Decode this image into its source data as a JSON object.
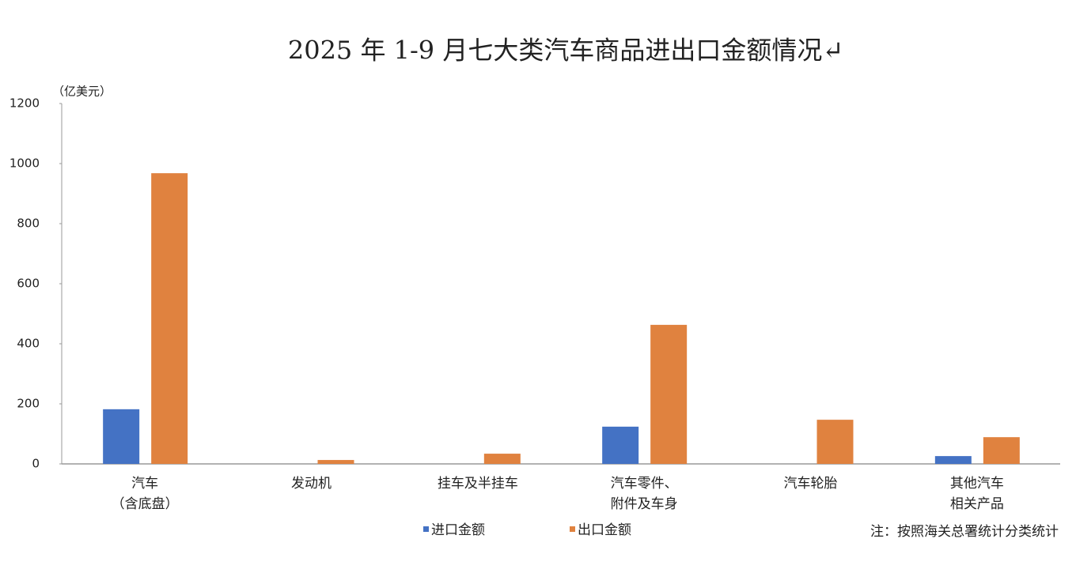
{
  "chart_data": {
    "type": "bar",
    "title": "2025 年 1-9 月七大类汽车商品进出口金额情况↵",
    "y_unit": "（亿美元）",
    "categories": [
      "汽车\n（含底盘）",
      "发动机",
      "挂车及半挂车",
      "汽车零件、\n附件及车身",
      "汽车轮胎",
      "其他汽车\n相关产品"
    ],
    "series": [
      {
        "name": "进口金额",
        "color": "#4472c4",
        "values": [
          182,
          0,
          0,
          124,
          0,
          26
        ]
      },
      {
        "name": "出口金额",
        "color": "#e0823f",
        "values": [
          968,
          13,
          34,
          463,
          147,
          89
        ]
      }
    ],
    "ylim": [
      0,
      1200
    ],
    "yticks": [
      0,
      200,
      400,
      600,
      800,
      1000,
      1200
    ],
    "grid": false,
    "note": "注：按照海关总署统计分类统计"
  }
}
